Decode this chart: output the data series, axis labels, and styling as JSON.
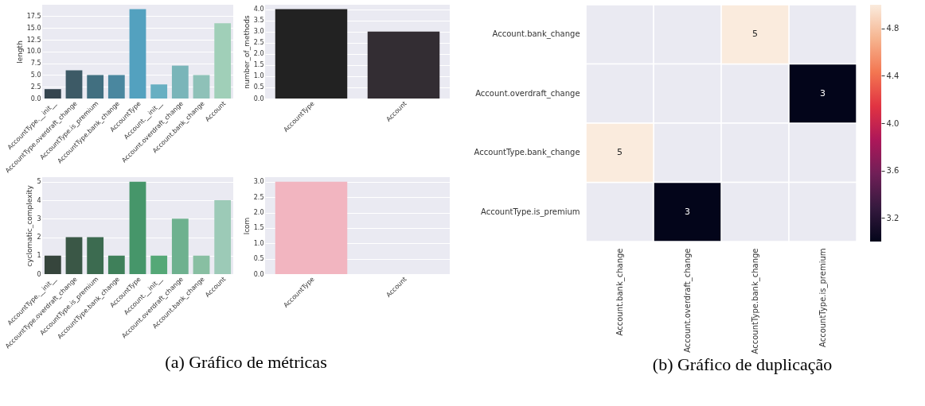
{
  "chart_data": [
    {
      "type": "bar",
      "ylabel": "length",
      "categories": [
        "AccountType.__init__",
        "AccountType.overdraft_change",
        "AccountType.is_premium",
        "AccountType.bank_change",
        "AccountType",
        "Account.__init__",
        "Account.overdraft_change",
        "Account.bank_change",
        "Account"
      ],
      "values": [
        2,
        6,
        5,
        5,
        19,
        3,
        7,
        5,
        16
      ],
      "colors": [
        "#35454f",
        "#3d5a66",
        "#416f80",
        "#4a879f",
        "#53a1bf",
        "#67afc2",
        "#7ab5b9",
        "#8ec1b8",
        "#a0cfb8"
      ],
      "ylim": [
        0,
        19.95
      ],
      "yticks": [
        {
          "value": 0,
          "label": "0.0"
        },
        {
          "value": 2.5,
          "label": "2.5"
        },
        {
          "value": 5,
          "label": "5.0"
        },
        {
          "value": 7.5,
          "label": "7.5"
        },
        {
          "value": 10,
          "label": "10.0"
        },
        {
          "value": 12.5,
          "label": "12.5"
        },
        {
          "value": 15,
          "label": "15.0"
        },
        {
          "value": 17.5,
          "label": "17.5"
        }
      ],
      "grid": "y"
    },
    {
      "type": "bar",
      "ylabel": "number_of_methods",
      "categories": [
        "AccountType",
        "Account"
      ],
      "values": [
        4,
        3
      ],
      "colors": [
        "#222222",
        "#332d33"
      ],
      "ylim": [
        0,
        4.2
      ],
      "yticks": [
        {
          "value": 0,
          "label": "0.0"
        },
        {
          "value": 0.5,
          "label": "0.5"
        },
        {
          "value": 1,
          "label": "1.0"
        },
        {
          "value": 1.5,
          "label": "1.5"
        },
        {
          "value": 2,
          "label": "2.0"
        },
        {
          "value": 2.5,
          "label": "2.5"
        },
        {
          "value": 3,
          "label": "3.0"
        },
        {
          "value": 3.5,
          "label": "3.5"
        },
        {
          "value": 4,
          "label": "4.0"
        }
      ],
      "grid": "y"
    },
    {
      "type": "bar",
      "ylabel": "cyclomatic_complexity",
      "categories": [
        "AccountType.__init__",
        "AccountType.overdraft_change",
        "AccountType.is_premium",
        "AccountType.bank_change",
        "AccountType",
        "Account.__init__",
        "Account.overdraft_change",
        "Account.bank_change",
        "Account"
      ],
      "values": [
        1,
        2,
        2,
        1,
        5,
        1,
        3,
        1,
        4
      ],
      "colors": [
        "#36453c",
        "#3a5746",
        "#3c6b50",
        "#3f805a",
        "#46966a",
        "#55a877",
        "#6eb18f",
        "#88bfa2",
        "#9ccab7"
      ],
      "ylim": [
        0,
        5.25
      ],
      "yticks": [
        0,
        1,
        2,
        3,
        4,
        5
      ],
      "grid": "y",
      "annotations": [
        "(a) Gráfico de métricas"
      ]
    },
    {
      "type": "bar",
      "ylabel": "lcom",
      "categories": [
        "AccountType",
        "Account"
      ],
      "values": [
        3,
        0
      ],
      "colors": [
        "#f2b5c0",
        "#f2b5c0"
      ],
      "ylim": [
        0,
        3.15
      ],
      "yticks": [
        {
          "value": 0,
          "label": "0.0"
        },
        {
          "value": 0.5,
          "label": "0.5"
        },
        {
          "value": 1,
          "label": "1.0"
        },
        {
          "value": 1.5,
          "label": "1.5"
        },
        {
          "value": 2,
          "label": "2.0"
        },
        {
          "value": 2.5,
          "label": "2.5"
        },
        {
          "value": 3,
          "label": "3.0"
        }
      ],
      "grid": "y"
    },
    {
      "type": "heatmap",
      "categories": [
        "Account.bank_change",
        "Account.overdraft_change",
        "AccountType.bank_change",
        "AccountType.is_premium"
      ],
      "y_categories": [
        "Account.bank_change",
        "Account.overdraft_change",
        "AccountType.bank_change",
        "AccountType.is_premium"
      ],
      "cells": [
        [
          null,
          null,
          5,
          null
        ],
        [
          null,
          null,
          null,
          3
        ],
        [
          5,
          null,
          null,
          null
        ],
        [
          null,
          3,
          null,
          null
        ]
      ],
      "data_labels": true,
      "clim": [
        3,
        5
      ],
      "cticks": [
        3.2,
        3.6,
        {
          "value": 4,
          "label": "4.0"
        },
        4.4,
        4.8
      ],
      "annotations": [
        "(b) Gráfico de duplicação"
      ]
    }
  ]
}
